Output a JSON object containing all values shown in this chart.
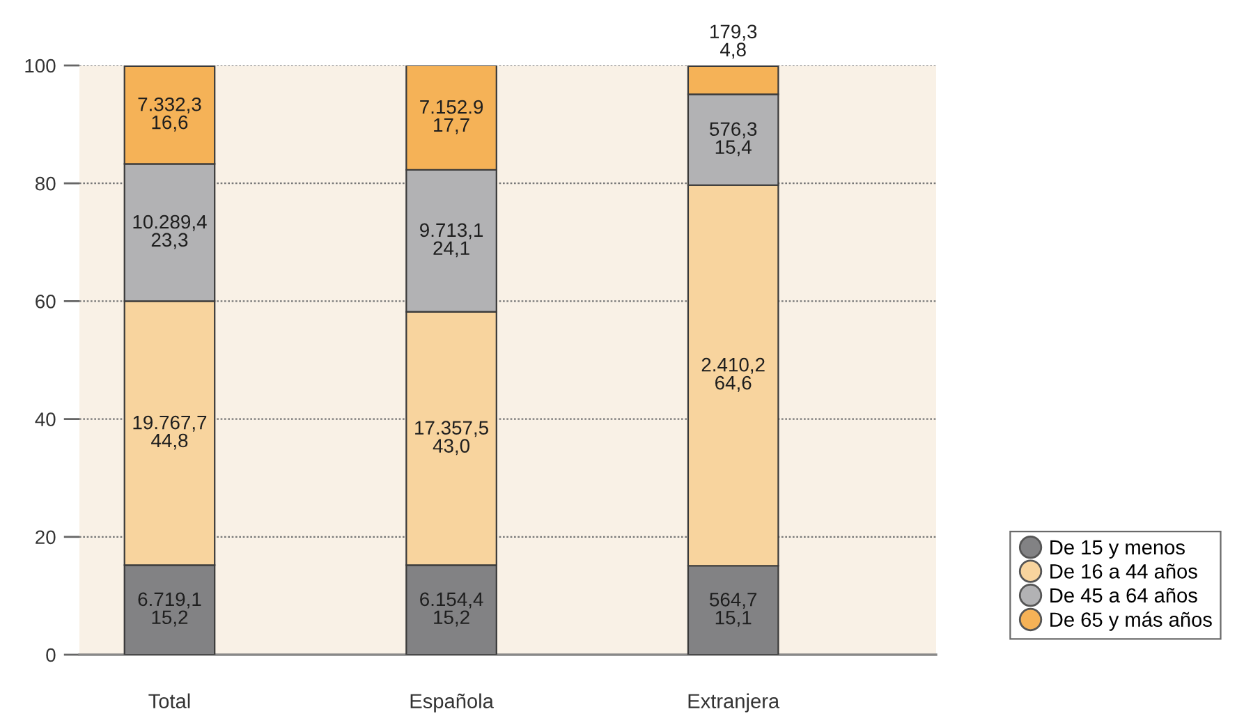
{
  "chart_data": {
    "type": "bar",
    "stacked": true,
    "categories": [
      "Total",
      "Española",
      "Extranjera"
    ],
    "series": [
      {
        "name": "De 15 y menos",
        "color": "#828284",
        "values": [
          15.2,
          15.2,
          15.1
        ],
        "value_labels": [
          "6.719,1\n15,2",
          "6.154,4\n15,2",
          "564,7\n15,1"
        ]
      },
      {
        "name": "De 16 a 44 años",
        "color": "#f8d49e",
        "values": [
          44.8,
          43.0,
          64.6
        ],
        "value_labels": [
          "19.767,7\n44,8",
          "17.357,5\n43,0",
          "2.410,2\n64,6"
        ]
      },
      {
        "name": "De 45 a 64 años",
        "color": "#b2b2b4",
        "values": [
          23.3,
          24.1,
          15.4
        ],
        "value_labels": [
          "10.289,4\n23,3",
          "9.713,1\n24,1",
          "576,3\n15,4"
        ]
      },
      {
        "name": "De 65 y más años",
        "color": "#f5b257",
        "values": [
          16.6,
          17.7,
          4.8
        ],
        "value_labels": [
          "7.332,3\n16,6",
          "7.152.9\n17,7",
          "179,3\n4,8"
        ]
      }
    ],
    "ylim": [
      0,
      100
    ],
    "yticks": [
      0,
      20,
      40,
      60,
      80,
      100
    ],
    "grid": "y",
    "legend": "bottom right"
  }
}
